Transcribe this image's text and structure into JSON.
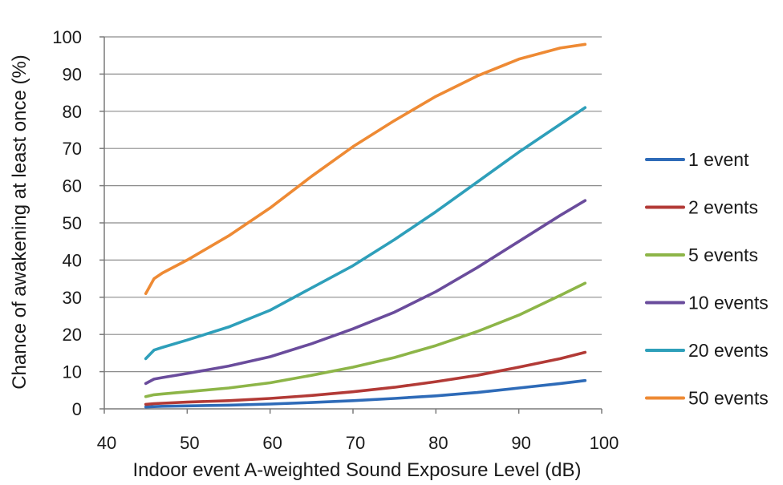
{
  "chart_data": {
    "type": "line",
    "title": "",
    "xlabel": "Indoor event A-weighted Sound Exposure Level (dB)",
    "ylabel": "Chance of awakening at least once (%)",
    "xlim": [
      40,
      100
    ],
    "ylim": [
      0,
      100
    ],
    "xticks": [
      "40",
      "50",
      "60",
      "70",
      "80",
      "90",
      "100"
    ],
    "yticks": [
      "0",
      "10",
      "20",
      "30",
      "40",
      "50",
      "60",
      "70",
      "80",
      "90",
      "100"
    ],
    "grid": "horizontal",
    "legend_position": "right",
    "x": [
      45,
      46,
      47,
      50,
      55,
      60,
      65,
      70,
      75,
      80,
      85,
      90,
      95,
      98
    ],
    "series": [
      {
        "name": "1 event",
        "color": "#2e6bb8",
        "values": [
          0.5,
          0.6,
          0.7,
          0.8,
          1.0,
          1.3,
          1.7,
          2.2,
          2.8,
          3.5,
          4.4,
          5.6,
          6.8,
          7.6
        ]
      },
      {
        "name": "2 events",
        "color": "#b23a36",
        "values": [
          1.2,
          1.4,
          1.5,
          1.8,
          2.2,
          2.8,
          3.6,
          4.6,
          5.8,
          7.3,
          9.0,
          11.2,
          13.5,
          15.2
        ]
      },
      {
        "name": "5 events",
        "color": "#8db548",
        "values": [
          3.3,
          3.8,
          4.0,
          4.6,
          5.6,
          7.0,
          9.0,
          11.2,
          13.8,
          17.0,
          20.8,
          25.2,
          30.5,
          33.8
        ]
      },
      {
        "name": "10 events",
        "color": "#6a4c9c",
        "values": [
          6.8,
          8.0,
          8.4,
          9.5,
          11.5,
          14.0,
          17.5,
          21.5,
          26.0,
          31.5,
          38.0,
          45.0,
          52.0,
          56.0
        ]
      },
      {
        "name": "20 events",
        "color": "#2e9fba",
        "values": [
          13.5,
          15.8,
          16.5,
          18.5,
          22.0,
          26.5,
          32.5,
          38.5,
          45.5,
          53.0,
          61.0,
          69.0,
          76.5,
          81.0
        ]
      },
      {
        "name": "50 events",
        "color": "#ee8a34",
        "values": [
          31.0,
          35.0,
          36.5,
          40.0,
          46.5,
          54.0,
          62.5,
          70.5,
          77.5,
          84.0,
          89.5,
          94.0,
          97.0,
          98.0
        ]
      }
    ]
  }
}
